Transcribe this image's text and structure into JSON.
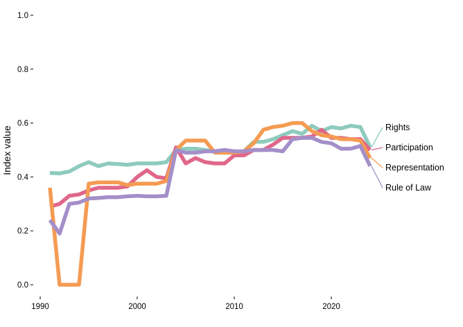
{
  "chart_data": {
    "type": "line",
    "title": "",
    "xlabel": "",
    "ylabel": "Index value",
    "xlim": [
      1990,
      2030
    ],
    "ylim": [
      0,
      1
    ],
    "xticks": [
      1990,
      2000,
      2010,
      2020
    ],
    "yticks": [
      0.0,
      0.2,
      0.4,
      0.6,
      0.8,
      1.0
    ],
    "ytick_labels": [
      "0.0",
      "0.2",
      "0.4",
      "0.6",
      "0.8",
      "1.0"
    ],
    "grid": false,
    "legend": "direct labels at line ends (right)",
    "x": [
      1991,
      1992,
      1993,
      1994,
      1995,
      1996,
      1997,
      1998,
      1999,
      2000,
      2001,
      2002,
      2003,
      2004,
      2005,
      2006,
      2007,
      2008,
      2009,
      2010,
      2011,
      2012,
      2013,
      2014,
      2015,
      2016,
      2017,
      2018,
      2019,
      2020,
      2021,
      2022,
      2023,
      2024
    ],
    "series": [
      {
        "name": "Rights",
        "color": "#8ecbbd",
        "values": [
          0.415,
          0.413,
          0.42,
          0.44,
          0.455,
          0.44,
          0.45,
          0.448,
          0.445,
          0.45,
          0.45,
          0.45,
          0.455,
          0.5,
          0.505,
          0.505,
          0.5,
          0.495,
          0.49,
          0.49,
          0.495,
          0.53,
          0.53,
          0.54,
          0.555,
          0.57,
          0.56,
          0.59,
          0.57,
          0.585,
          0.58,
          0.59,
          0.585,
          0.51
        ]
      },
      {
        "name": "Participation",
        "color": "#e0678a",
        "values": [
          0.29,
          0.3,
          0.33,
          0.335,
          0.35,
          0.36,
          0.36,
          0.36,
          0.365,
          0.4,
          0.425,
          0.4,
          0.395,
          0.51,
          0.45,
          0.47,
          0.455,
          0.45,
          0.45,
          0.48,
          0.48,
          0.5,
          0.5,
          0.52,
          0.545,
          0.545,
          0.545,
          0.55,
          0.575,
          0.545,
          0.545,
          0.54,
          0.54,
          0.5
        ]
      },
      {
        "name": "Representation",
        "color": "#f59b52",
        "values": [
          0.36,
          0.0,
          0.0,
          0.0,
          0.375,
          0.38,
          0.38,
          0.38,
          0.37,
          0.375,
          0.375,
          0.375,
          0.385,
          0.5,
          0.535,
          0.535,
          0.535,
          0.49,
          0.49,
          0.49,
          0.495,
          0.525,
          0.575,
          0.585,
          0.59,
          0.6,
          0.6,
          0.57,
          0.555,
          0.55,
          0.54,
          0.54,
          0.535,
          0.47
        ]
      },
      {
        "name": "Rule of Law",
        "color": "#a48fc9",
        "values": [
          0.24,
          0.19,
          0.3,
          0.305,
          0.32,
          0.322,
          0.325,
          0.325,
          0.328,
          0.33,
          0.328,
          0.328,
          0.33,
          0.5,
          0.49,
          0.49,
          0.495,
          0.495,
          0.5,
          0.495,
          0.495,
          0.5,
          0.5,
          0.5,
          0.495,
          0.54,
          0.545,
          0.545,
          0.53,
          0.525,
          0.505,
          0.505,
          0.515,
          0.44
        ]
      }
    ]
  }
}
